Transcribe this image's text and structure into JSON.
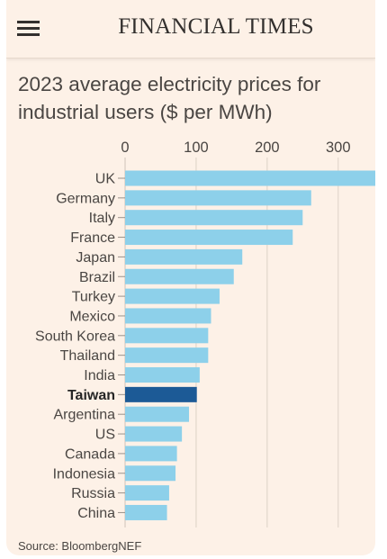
{
  "header": {
    "brand": "FINANCIAL TIMES",
    "menu_icon": "hamburger-menu-icon"
  },
  "chart_data": {
    "type": "bar",
    "orientation": "horizontal",
    "title": "2023 average electricity prices for industrial users ($ per MWh)",
    "xlim": [
      0,
      370
    ],
    "x_ticks": [
      0,
      100,
      200,
      300
    ],
    "grid": true,
    "categories": [
      "UK",
      "Germany",
      "Italy",
      "France",
      "Japan",
      "Brazil",
      "Turkey",
      "Mexico",
      "South Korea",
      "Thailand",
      "India",
      "Taiwan",
      "Argentina",
      "US",
      "Canada",
      "Indonesia",
      "Russia",
      "China"
    ],
    "values": [
      372,
      262,
      250,
      236,
      165,
      153,
      133,
      121,
      117,
      117,
      105,
      101,
      90,
      80,
      73,
      71,
      62,
      59
    ],
    "highlight": "Taiwan",
    "colors": {
      "bar": "#8dd0ea",
      "highlight": "#1c5a96",
      "grid": "#e2d7cc"
    },
    "source": "Source: BloombergNEF"
  }
}
